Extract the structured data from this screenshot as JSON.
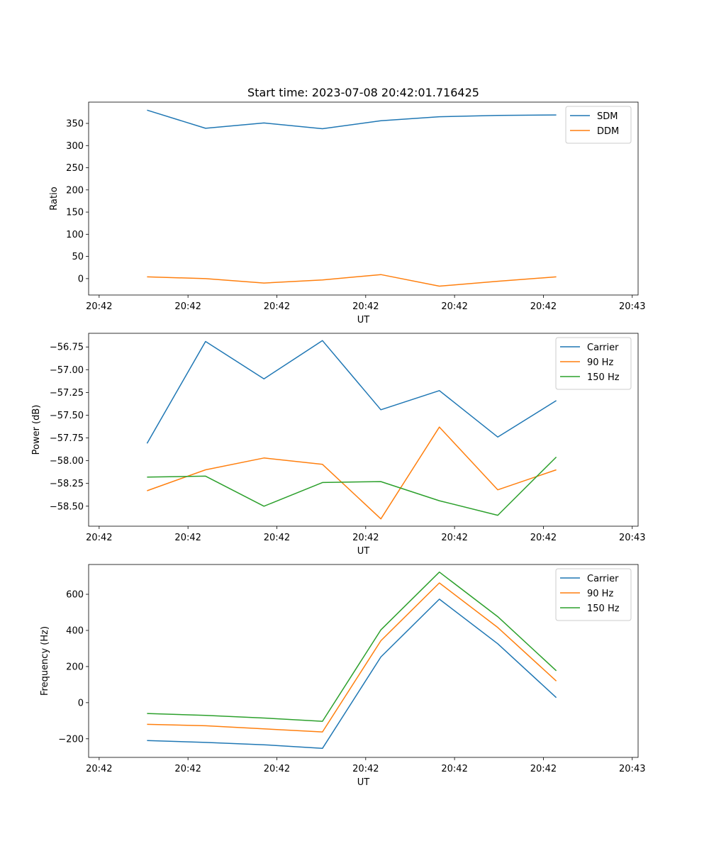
{
  "figure_title": "Start time: 2023-07-08 20:42:01.716425",
  "colors": {
    "blue": "#1f77b4",
    "orange": "#ff7f0e",
    "green": "#2ca02c"
  },
  "chart_data": [
    {
      "type": "line",
      "title": "Start time: 2023-07-08 20:42:01.716425",
      "xlabel": "UT",
      "ylabel": "Ratio",
      "x": [
        1,
        2,
        3,
        4,
        5,
        6,
        7,
        8
      ],
      "xlim": [
        0,
        9.4
      ],
      "xticks": [
        0.18,
        1.7,
        3.22,
        4.74,
        6.26,
        7.78,
        9.3
      ],
      "xtick_labels": [
        "20:42",
        "20:42",
        "20:42",
        "20:42",
        "20:42",
        "20:42",
        "20:43"
      ],
      "ylim": [
        -37,
        398
      ],
      "yticks": [
        0,
        50,
        100,
        150,
        200,
        250,
        300,
        350
      ],
      "ytick_labels": [
        "0",
        "50",
        "100",
        "150",
        "200",
        "250",
        "300",
        "350"
      ],
      "legend_loc": "top-right",
      "series": [
        {
          "name": "SDM",
          "color": "#1f77b4",
          "values": [
            380,
            339,
            351,
            338,
            356,
            365,
            368,
            369
          ]
        },
        {
          "name": "DDM",
          "color": "#ff7f0e",
          "values": [
            4,
            0,
            -10,
            -3,
            9,
            -17,
            -6,
            4
          ]
        }
      ]
    },
    {
      "type": "line",
      "title": "",
      "xlabel": "UT",
      "ylabel": "Power (dB)",
      "x": [
        1,
        2,
        3,
        4,
        5,
        6,
        7,
        8
      ],
      "xlim": [
        0,
        9.4
      ],
      "xticks": [
        0.18,
        1.7,
        3.22,
        4.74,
        6.26,
        7.78,
        9.3
      ],
      "xtick_labels": [
        "20:42",
        "20:42",
        "20:42",
        "20:42",
        "20:42",
        "20:42",
        "20:43"
      ],
      "ylim": [
        -58.72,
        -56.6
      ],
      "yticks": [
        -58.5,
        -58.25,
        -58.0,
        -57.75,
        -57.5,
        -57.25,
        -57.0,
        -56.75
      ],
      "ytick_labels": [
        "−58.50",
        "−58.25",
        "−58.00",
        "−57.75",
        "−57.50",
        "−57.25",
        "−57.00",
        "−56.75"
      ],
      "legend_loc": "top-right",
      "series": [
        {
          "name": "Carrier",
          "color": "#1f77b4",
          "values": [
            -57.81,
            -56.69,
            -57.1,
            -56.68,
            -57.44,
            -57.23,
            -57.74,
            -57.34
          ]
        },
        {
          "name": "90 Hz",
          "color": "#ff7f0e",
          "values": [
            -58.33,
            -58.1,
            -57.97,
            -58.04,
            -58.64,
            -57.63,
            -58.32,
            -58.1
          ]
        },
        {
          "name": "150 Hz",
          "color": "#2ca02c",
          "values": [
            -58.18,
            -58.17,
            -58.5,
            -58.24,
            -58.23,
            -58.44,
            -58.6,
            -57.96
          ]
        }
      ]
    },
    {
      "type": "line",
      "title": "",
      "xlabel": "UT",
      "ylabel": "Frequency (Hz)",
      "x": [
        1,
        2,
        3,
        4,
        5,
        6,
        7,
        8
      ],
      "xlim": [
        0,
        9.4
      ],
      "xticks": [
        0.18,
        1.7,
        3.22,
        4.74,
        6.26,
        7.78,
        9.3
      ],
      "xtick_labels": [
        "20:42",
        "20:42",
        "20:42",
        "20:42",
        "20:42",
        "20:42",
        "20:43"
      ],
      "ylim": [
        -303,
        765
      ],
      "yticks": [
        -200,
        0,
        200,
        400,
        600
      ],
      "ytick_labels": [
        "−200",
        "0",
        "200",
        "400",
        "600"
      ],
      "legend_loc": "top-right",
      "series": [
        {
          "name": "Carrier",
          "color": "#1f77b4",
          "values": [
            -210,
            -220,
            -233,
            -253,
            253,
            573,
            326,
            28
          ]
        },
        {
          "name": "90 Hz",
          "color": "#ff7f0e",
          "values": [
            -120,
            -128,
            -145,
            -162,
            343,
            663,
            416,
            120
          ]
        },
        {
          "name": "150 Hz",
          "color": "#2ca02c",
          "values": [
            -60,
            -70,
            -85,
            -103,
            403,
            723,
            476,
            177
          ]
        }
      ]
    }
  ]
}
